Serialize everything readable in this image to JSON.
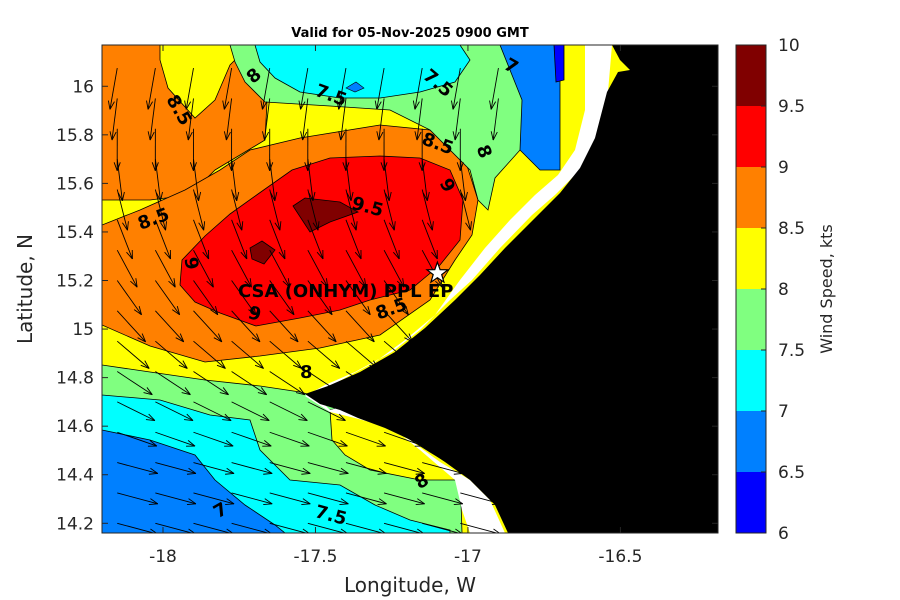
{
  "chart_data": {
    "type": "heatmap",
    "title": "Valid for 05-Nov-2025 0900 GMT",
    "xlabel": "Longitude, W",
    "ylabel": "Latitude, N",
    "xlim": [
      -18.2,
      -16.18
    ],
    "ylim": [
      14.16,
      16.17
    ],
    "x_ticks": [
      "-18",
      "-17.5",
      "-17",
      "-16.5"
    ],
    "x_tick_values": [
      -18,
      -17.5,
      -17,
      -16.5
    ],
    "y_ticks": [
      "14.2",
      "14.4",
      "14.6",
      "14.8",
      "15",
      "15.2",
      "15.4",
      "15.6",
      "15.8",
      "16"
    ],
    "y_tick_values": [
      14.2,
      14.4,
      14.6,
      14.8,
      15,
      15.2,
      15.4,
      15.6,
      15.8,
      16
    ],
    "colorbar": {
      "label": "Wind Speed, kts",
      "range": [
        6,
        10
      ],
      "tick_labels": [
        "6",
        "6.5",
        "7",
        "7.5",
        "8",
        "8.5",
        "9",
        "9.5",
        "10"
      ],
      "levels": [
        6,
        6.5,
        7,
        7.5,
        8,
        8.5,
        9,
        9.5,
        10
      ],
      "colors": [
        "#0000ff",
        "#0080ff",
        "#00ffff",
        "#80ff80",
        "#ffff00",
        "#ff8000",
        "#ff0000",
        "#800000"
      ]
    },
    "contour_labels": [
      {
        "text": "8.5",
        "lon": -17.95,
        "lat": 15.9,
        "rot": 60
      },
      {
        "text": "8",
        "lon": -17.7,
        "lat": 16.04,
        "rot": -40
      },
      {
        "text": "7.5",
        "lon": -17.45,
        "lat": 15.96,
        "rot": 20
      },
      {
        "text": "7.5",
        "lon": -17.1,
        "lat": 16.01,
        "rot": 40
      },
      {
        "text": "7",
        "lon": -16.86,
        "lat": 16.08,
        "rot": 30
      },
      {
        "text": "8.5",
        "lon": -17.1,
        "lat": 15.76,
        "rot": 20
      },
      {
        "text": "8",
        "lon": -16.95,
        "lat": 15.73,
        "rot": 70
      },
      {
        "text": "9",
        "lon": -17.07,
        "lat": 15.59,
        "rot": 60
      },
      {
        "text": "9.5",
        "lon": -17.33,
        "lat": 15.5,
        "rot": 15
      },
      {
        "text": "8.5",
        "lon": -18.03,
        "lat": 15.45,
        "rot": -20
      },
      {
        "text": "9",
        "lon": -17.91,
        "lat": 15.27,
        "rot": 80
      },
      {
        "text": "9",
        "lon": -17.7,
        "lat": 15.06,
        "rot": 15
      },
      {
        "text": "8.5",
        "lon": -17.25,
        "lat": 15.08,
        "rot": -20
      },
      {
        "text": "8",
        "lon": -17.53,
        "lat": 14.82,
        "rot": 0
      },
      {
        "text": "8",
        "lon": -17.15,
        "lat": 14.37,
        "rot": -30
      },
      {
        "text": "7.5",
        "lon": -17.45,
        "lat": 14.23,
        "rot": 15
      },
      {
        "text": "7",
        "lon": -17.81,
        "lat": 14.25,
        "rot": -30
      }
    ],
    "station": {
      "name": "CSA (ONHYM) PPL EP",
      "lon": -17.1,
      "lat": 15.23
    },
    "wind_vector_field": {
      "direction": "from NNE over northern area turning to from WNW over southern area",
      "lon_spacing": 0.125,
      "lat_spacing": 0.125
    }
  }
}
